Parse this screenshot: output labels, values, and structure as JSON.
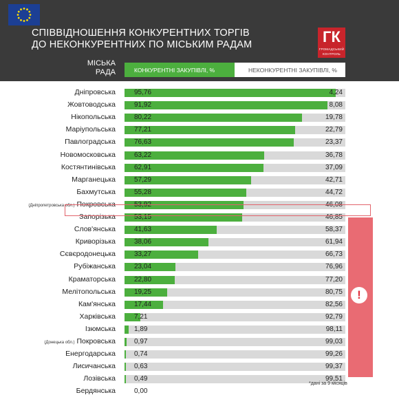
{
  "title_lines": [
    "СПІВВІДНОШЕННЯ КОНКУРЕНТНИХ ТОРГІВ",
    "ДО НЕКОНКУРЕНТНИХ ПО МІСЬКИМ РАДАМ"
  ],
  "logo": {
    "mark": "ГК",
    "subtitle": "громадський контроль"
  },
  "column_label_lines": [
    "МІСЬКА",
    "РАДА"
  ],
  "alert_icon": "exclamation-icon",
  "footnote": "*дані за 9 місяців",
  "colors": {
    "competitive": "#4caf3e",
    "noncompetitive": "#d9d9d9",
    "alert": "#e96b73",
    "header": "#3a3a3a"
  },
  "chart_data": {
    "type": "bar",
    "orientation": "horizontal",
    "stacked": true,
    "xlim": [
      0,
      100
    ],
    "categories": [
      "Дніпровська",
      "Жовтоводська",
      "Нікопольська",
      "Маріупольська",
      "Павлоградська",
      "Новомосковська",
      "Костянтинівська",
      "Марганецька",
      "Бахмутська",
      "Покровська",
      "Запорізька",
      "Слов'янська",
      "Криворізька",
      "Сєвєродонецька",
      "Рубіжанська",
      "Краматорська",
      "Мелітопольська",
      "Кам'янська",
      "Харківська",
      "Ізюмська",
      "Покровська",
      "Енергодарська",
      "Лисичанська",
      "Лозівська",
      "Бердянська"
    ],
    "category_notes": [
      "",
      "",
      "",
      "",
      "",
      "",
      "",
      "",
      "",
      "(Дніпропетровська обл.)",
      "",
      "",
      "",
      "",
      "",
      "",
      "",
      "",
      "",
      "",
      "(Донецька обл.)",
      "",
      "",
      "",
      ""
    ],
    "series": [
      {
        "name": "КОНКУРЕНТНІ ЗАКУПІВЛІ, %",
        "values": [
          95.76,
          91.92,
          80.22,
          77.21,
          76.63,
          63.22,
          62.91,
          57.29,
          55.28,
          53.92,
          53.15,
          41.63,
          38.06,
          33.27,
          23.04,
          22.8,
          19.25,
          17.44,
          7.21,
          1.89,
          0.97,
          0.74,
          0.63,
          0.49,
          0.0
        ],
        "labels": [
          "95,76",
          "91,92",
          "80,22",
          "77,21",
          "76,63",
          "63,22",
          "62,91",
          "57,29",
          "55,28",
          "53,92",
          "53,15",
          "41,63",
          "38,06",
          "33,27",
          "23,04",
          "22,80",
          "19,25",
          "17,44",
          "7,21",
          "1,89",
          "0,97",
          "0,74",
          "0,63",
          "0,49",
          "0,00"
        ]
      },
      {
        "name": "НЕКОНКУРЕНТНІ ЗАКУПІВЛІ, %",
        "values": [
          4.24,
          8.08,
          19.78,
          22.79,
          23.37,
          36.78,
          37.09,
          42.71,
          44.72,
          46.08,
          46.85,
          58.37,
          61.94,
          66.73,
          76.96,
          77.2,
          80.75,
          82.56,
          92.79,
          98.11,
          99.03,
          99.26,
          99.37,
          99.51,
          null
        ],
        "labels": [
          "4,24",
          "8,08",
          "19,78",
          "22,79",
          "23,37",
          "36,78",
          "37,09",
          "42,71",
          "44,72",
          "46,08",
          "46,85",
          "58,37",
          "61,94",
          "66,73",
          "76,96",
          "77,20",
          "80,75",
          "82,56",
          "92,79",
          "98,11",
          "99,03",
          "99,26",
          "99,37",
          "99,51",
          ""
        ]
      }
    ],
    "highlighted_category_index": 10,
    "alert_range": [
      11,
      24
    ]
  }
}
